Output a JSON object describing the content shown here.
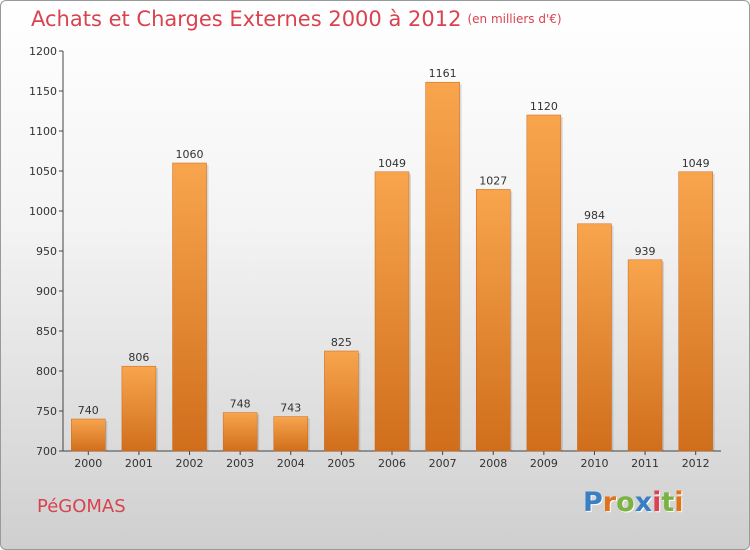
{
  "header": {
    "title": "Achats et Charges Externes 2000 à 2012",
    "subtitle": "(en milliers d'€)"
  },
  "footer": {
    "commune": "PéGOMAS",
    "logo": "Proxiti"
  },
  "colors": {
    "title": "#d8434f",
    "bar_light": "#f8a54e",
    "bar_dark": "#d06e1c",
    "logo_letters": [
      "#3a7fc4",
      "#e0731a",
      "#7ab342",
      "#3a7fc4",
      "#d8434f",
      "#7ab342",
      "#e0731a"
    ]
  },
  "chart_data": {
    "type": "bar",
    "categories": [
      "2000",
      "2001",
      "2002",
      "2003",
      "2004",
      "2005",
      "2006",
      "2007",
      "2008",
      "2009",
      "2010",
      "2011",
      "2012"
    ],
    "values": [
      740,
      806,
      1060,
      748,
      743,
      825,
      1049,
      1161,
      1027,
      1120,
      984,
      939,
      1049
    ],
    "ylim": [
      700,
      1200
    ],
    "yticks": [
      700,
      750,
      800,
      850,
      900,
      950,
      1000,
      1050,
      1100,
      1150,
      1200
    ],
    "grid": false,
    "data_labels": true
  }
}
